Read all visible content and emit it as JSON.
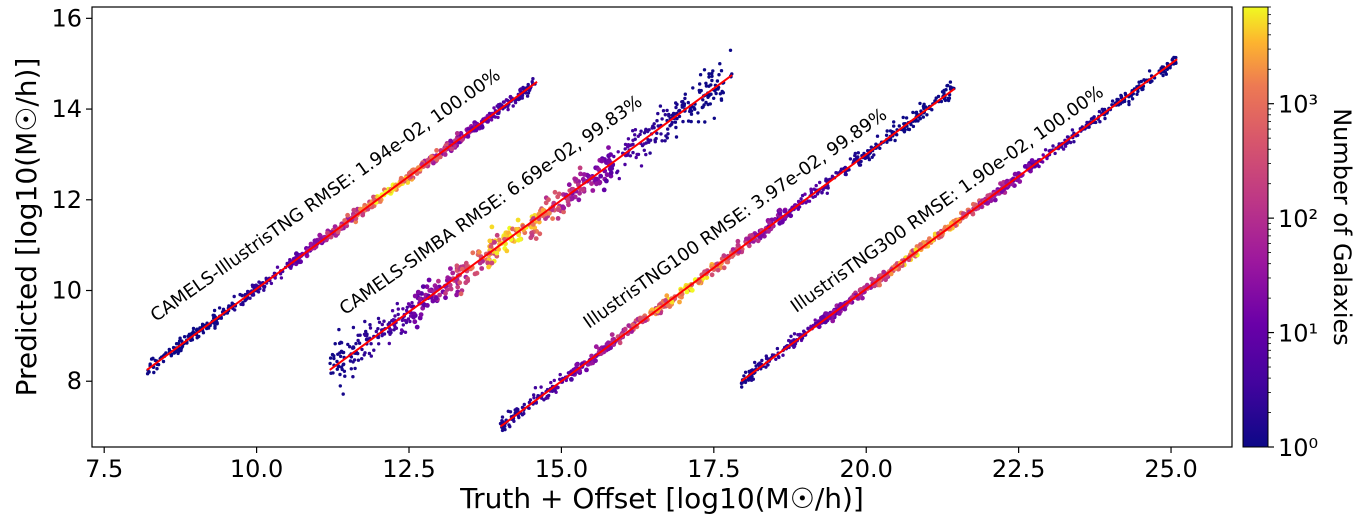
{
  "chart_data": {
    "type": "scatter",
    "xlabel": "Truth + Offset [log10(M☉/h)]",
    "ylabel": "Predicted [log10(M☉/h)]",
    "xlim": [
      7.3,
      26.0
    ],
    "ylim": [
      6.55,
      16.25
    ],
    "xticks": [
      7.5,
      10.0,
      12.5,
      15.0,
      17.5,
      20.0,
      22.5,
      25.0
    ],
    "xtick_labels": [
      "7.5",
      "10.0",
      "12.5",
      "15.0",
      "17.5",
      "20.0",
      "22.5",
      "25.0"
    ],
    "yticks": [
      8,
      10,
      12,
      14,
      16
    ],
    "ytick_labels": [
      "8",
      "10",
      "12",
      "14",
      "16"
    ],
    "grid": false,
    "series": [
      {
        "annotation": "CAMELS-IllustrisTNG RMSE: 1.94e-02, 100.00%",
        "fit_line": {
          "x": [
            8.2,
            14.6
          ],
          "y": [
            8.25,
            14.6
          ]
        },
        "x_range": [
          8.2,
          14.6
        ],
        "scatter": 0.05,
        "dense_center": [
          12.2,
          12.2
        ]
      },
      {
        "annotation": "CAMELS-SIMBA RMSE: 6.69e-02, 99.83%",
        "fit_line": {
          "x": [
            11.2,
            17.8
          ],
          "y": [
            8.25,
            14.75
          ]
        },
        "x_range": [
          11.2,
          17.8
        ],
        "scatter": 0.15,
        "dense_center": [
          14.2,
          11.2
        ]
      },
      {
        "annotation": "IllustrisTNG100 RMSE: 3.97e-02, 99.89%",
        "fit_line": {
          "x": [
            14.0,
            21.45
          ],
          "y": [
            7.0,
            14.45
          ]
        },
        "x_range": [
          14.0,
          21.45
        ],
        "scatter": 0.06,
        "dense_center": [
          17.0,
          10.0
        ]
      },
      {
        "annotation": "IllustrisTNG300 RMSE: 1.90e-02, 100.00%",
        "fit_line": {
          "x": [
            17.95,
            25.1
          ],
          "y": [
            8.0,
            15.1
          ]
        },
        "x_range": [
          17.95,
          25.1
        ],
        "scatter": 0.045,
        "dense_center": [
          21.0,
          11.0
        ]
      }
    ],
    "colorbar": {
      "label": "Number of Galaxies",
      "scale": "log",
      "colormap": "plasma",
      "range": [
        1,
        7000
      ],
      "ticks": [
        1,
        10,
        100,
        1000
      ],
      "tick_labels": [
        "10⁰",
        "10¹",
        "10²",
        "10³"
      ]
    },
    "colors": {
      "fit_line": "#ff0000",
      "low_density": "#1a0a8f",
      "high_density": "#f0f921"
    }
  }
}
